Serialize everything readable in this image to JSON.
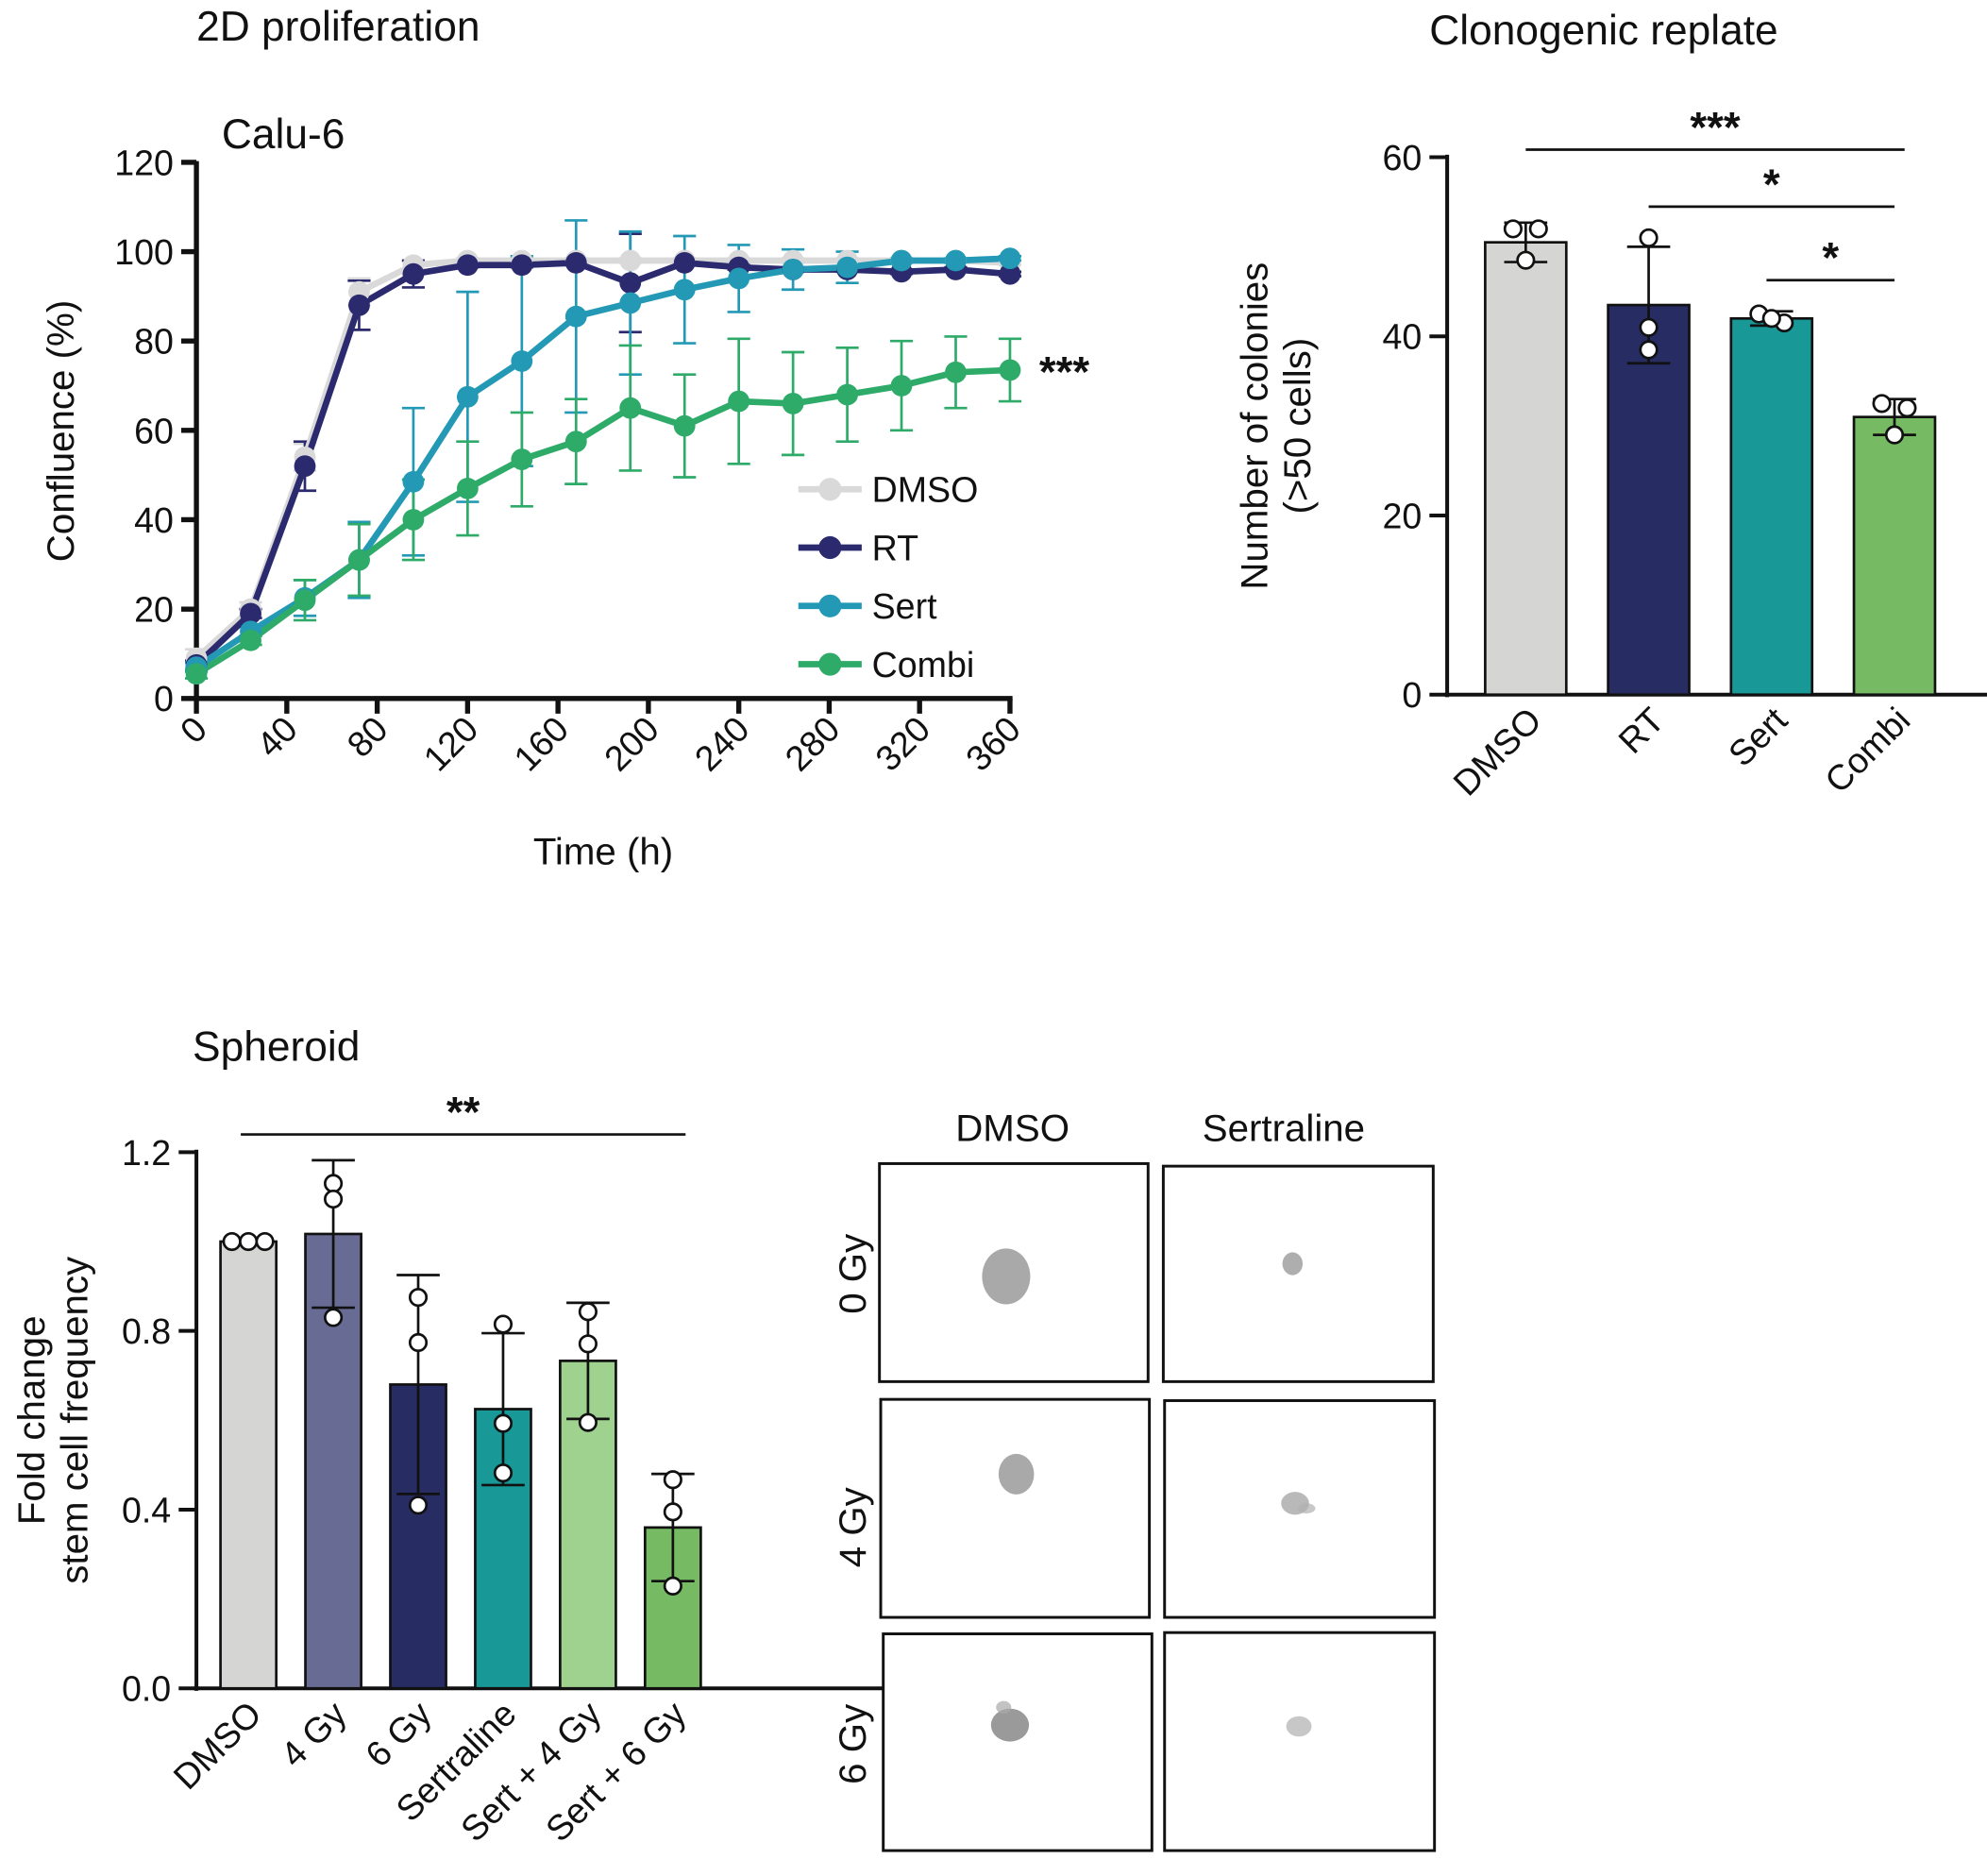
{
  "figure": {
    "panels": {
      "proliferation_title": "2D proliferation",
      "clonogenic_title": "Clonogenic replate",
      "spheroid_title": "Spheroid"
    },
    "images": {
      "columns": [
        "DMSO",
        "Sertraline"
      ],
      "rows": [
        "0 Gy",
        "4 Gy",
        "6 Gy"
      ]
    }
  },
  "chart_data": [
    {
      "id": "proliferation",
      "type": "line",
      "title": "2D proliferation",
      "subtitle": "Calu-6",
      "xlabel": "Time (h)",
      "ylabel": "Confluence (%)",
      "xlim": [
        0,
        360
      ],
      "ylim": [
        0,
        120
      ],
      "xticks": [
        0,
        40,
        80,
        120,
        160,
        200,
        240,
        280,
        320,
        360
      ],
      "yticks": [
        0,
        20,
        40,
        60,
        80,
        100,
        120
      ],
      "grid": false,
      "legend_position": "lower-right",
      "annotation": "***",
      "annotation_series": "Combi",
      "x": [
        0,
        24,
        48,
        72,
        96,
        120,
        144,
        168,
        192,
        216,
        240,
        264,
        288,
        312,
        336,
        360
      ],
      "series": [
        {
          "name": "DMSO",
          "color": "#d9d9d9",
          "values": [
            9,
            20,
            54,
            91,
            97,
            98,
            98,
            98,
            98,
            98,
            98,
            98,
            98,
            98,
            98,
            97.5
          ],
          "err": [
            2,
            1.5,
            3,
            3,
            1,
            0.5,
            0.5,
            0.5,
            0.5,
            0.5,
            0.5,
            0.5,
            0.5,
            0.5,
            0.5,
            0.5
          ]
        },
        {
          "name": "RT",
          "color": "#2b2a6e",
          "values": [
            7.5,
            19,
            52,
            88,
            95,
            97,
            97,
            97.5,
            93,
            97.5,
            96.5,
            96,
            96,
            95.5,
            96,
            95
          ],
          "err": [
            1,
            1,
            5.5,
            5.5,
            3,
            0.5,
            0.5,
            0.5,
            11,
            0.5,
            0.5,
            0.5,
            0.5,
            0.5,
            0.5,
            0.5
          ]
        },
        {
          "name": "Sert",
          "color": "#2399b5",
          "values": [
            7,
            15,
            22.5,
            31,
            48.5,
            67.5,
            75.5,
            85.5,
            88.5,
            91.5,
            94,
            96,
            96.5,
            98,
            98,
            98.5
          ],
          "err": [
            1,
            1,
            4,
            8.5,
            16.5,
            23.5,
            23.5,
            21.5,
            16,
            12,
            7.5,
            4.5,
            3.5,
            0.5,
            0.5,
            0.5
          ]
        },
        {
          "name": "Combi",
          "color": "#2eaa69",
          "values": [
            5.5,
            13,
            22,
            31,
            40,
            47,
            53.5,
            57.5,
            65,
            61,
            66.5,
            66,
            68,
            70,
            73,
            73.5
          ],
          "err": [
            1,
            1,
            4.5,
            8,
            9,
            10.5,
            10.5,
            9.5,
            14,
            11.5,
            14,
            11.5,
            10.5,
            10,
            8,
            7
          ]
        }
      ]
    },
    {
      "id": "clonogenic",
      "type": "bar",
      "title": "Clonogenic replate",
      "xlabel": "",
      "ylabel": [
        "Number of colonies",
        "(>50 cells)"
      ],
      "ylim": [
        0,
        60
      ],
      "yticks": [
        0,
        20,
        40,
        60
      ],
      "categories": [
        "DMSO",
        "RT",
        "Sert",
        "Combi"
      ],
      "colors": [
        "#d5d5d3",
        "#272c63",
        "#189897",
        "#76bb64"
      ],
      "values": [
        50.5,
        43.5,
        42,
        31
      ],
      "err": [
        2.2,
        6.5,
        0.8,
        2
      ],
      "points": [
        [
          52,
          52,
          48.5
        ],
        [
          51,
          41,
          38.5
        ],
        [
          42.5,
          41.5,
          42
        ],
        [
          32.5,
          32,
          29
        ]
      ],
      "significance": [
        {
          "from": "DMSO",
          "to": "Combi",
          "label": "***"
        },
        {
          "from": "RT",
          "to": "Combi",
          "label": "*"
        },
        {
          "from": "Sert",
          "to": "Combi",
          "label": "*"
        }
      ]
    },
    {
      "id": "spheroid",
      "type": "bar",
      "title": "Spheroid",
      "xlabel": "",
      "ylabel": [
        "Fold change",
        "stem cell frequency"
      ],
      "ylim": [
        0,
        1.2
      ],
      "yticks": [
        0.0,
        0.4,
        0.8,
        1.2
      ],
      "ytick_labels": [
        "0.0",
        "0.4",
        "0.8",
        "1.2"
      ],
      "categories": [
        "DMSO",
        "4 Gy",
        "6 Gy",
        "Sertraline",
        "Sert + 4 Gy",
        "Sert + 6 Gy"
      ],
      "colors": [
        "#d5d5d3",
        "#686c94",
        "#272c63",
        "#189897",
        "#9fd18f",
        "#76bb64"
      ],
      "values": [
        1.0,
        1.017,
        0.68,
        0.625,
        0.733,
        0.36
      ],
      "err": [
        0,
        0.165,
        0.245,
        0.17,
        0.13,
        0.12
      ],
      "points": [
        [
          1.0,
          1.0,
          1.0
        ],
        [
          1.13,
          1.095,
          0.83
        ],
        [
          0.875,
          0.774,
          0.41
        ],
        [
          0.815,
          0.593,
          0.482
        ],
        [
          0.843,
          0.771,
          0.595
        ],
        [
          0.467,
          0.395,
          0.229
        ]
      ],
      "significance": [
        {
          "from": "DMSO",
          "to": "Sert + 6 Gy",
          "label": "**"
        }
      ]
    }
  ]
}
